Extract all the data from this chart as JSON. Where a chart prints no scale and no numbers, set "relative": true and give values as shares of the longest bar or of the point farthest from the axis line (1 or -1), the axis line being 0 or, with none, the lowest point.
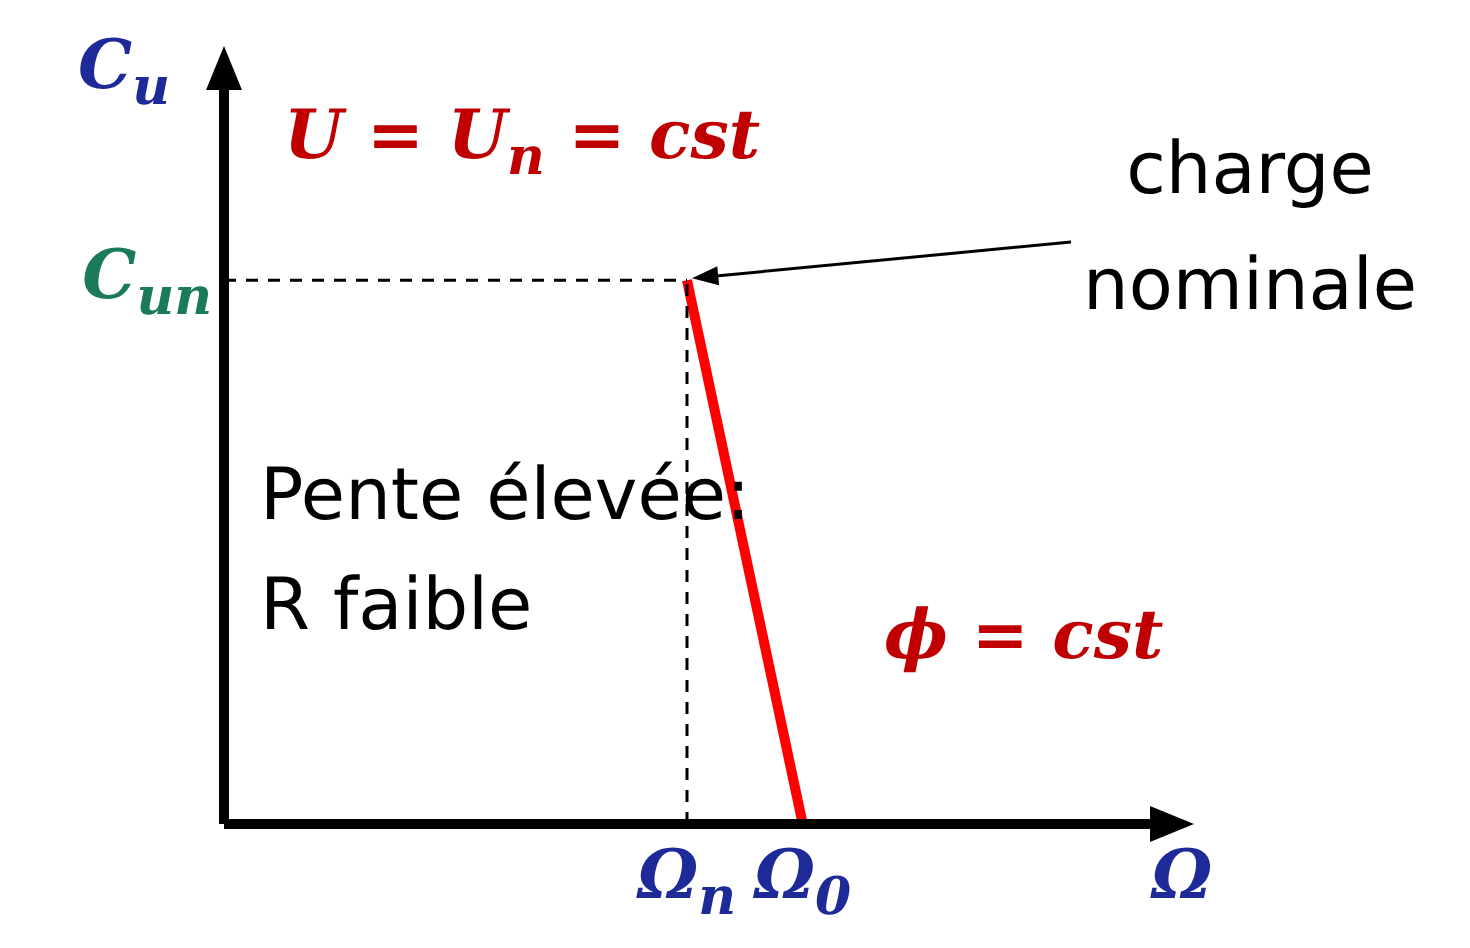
{
  "chart_data": {
    "type": "line",
    "xlabel": "Ω",
    "ylabel": "C$_{u}$",
    "relative": true,
    "categories": [
      null,
      null,
      null,
      null,
      "Ω$_{n}$",
      "Ω$_{0}$",
      null,
      null,
      null
    ],
    "series": [
      {
        "color": "#ff0000",
        "values": [
          null,
          null,
          null,
          null,
          1,
          0,
          null,
          null,
          null
        ]
      }
    ],
    "ref_lines": [
      {
        "axis": "x",
        "value": "Ω$_{n}$",
        "line_style": "dashed",
        "color": "#000000"
      },
      {
        "axis": "y",
        "value": 1,
        "label": "C$_{un}$",
        "line_style": "dashed",
        "color": "#000000"
      }
    ],
    "annotations": [
      "U = U$_{n}$ = cst",
      "charge nominale",
      "Pente élevée:",
      "R faible",
      "ϕ = cst"
    ],
    "grid": false,
    "legend": false,
    "marker": "none",
    "line_style": "solid"
  }
}
